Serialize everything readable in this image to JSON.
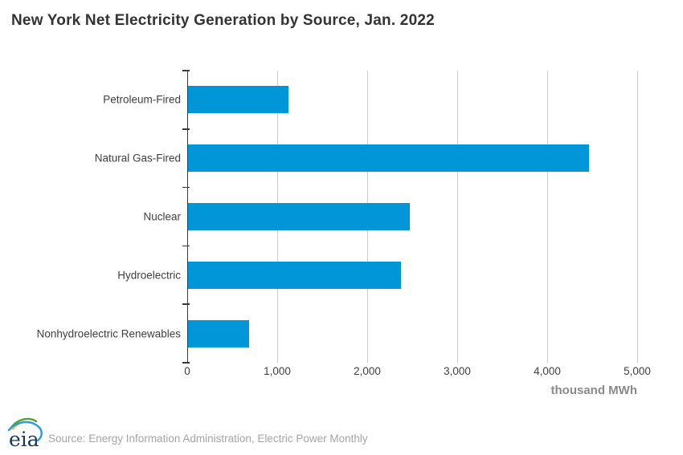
{
  "title": "New York Net Electricity Generation by Source, Jan. 2022",
  "chart_data": {
    "type": "bar",
    "orientation": "horizontal",
    "categories": [
      "Petroleum-Fired",
      "Natural Gas-Fired",
      "Nuclear",
      "Hydroelectric",
      "Nonhydroelectric Renewables"
    ],
    "values": [
      1115,
      4455,
      2460,
      2365,
      680
    ],
    "xlim": [
      0,
      5000
    ],
    "x_ticks": [
      "0",
      "1,000",
      "2,000",
      "3,000",
      "4,000",
      "5,000"
    ],
    "x_tick_values": [
      0,
      1000,
      2000,
      3000,
      4000,
      5000
    ],
    "unit_label": "thousand MWh",
    "title": "New York Net Electricity Generation by Source, Jan. 2022",
    "xlabel": "thousand MWh",
    "ylabel": "",
    "grid": "vertical gridlines on",
    "legend": "none",
    "bar_color": "#0096d7",
    "axis_color": "#3a3a3a",
    "gridline_color": "#cdcdcd"
  },
  "footer": {
    "logo_text": "eia",
    "source": "Source: Energy Information Administration, Electric Power Monthly"
  }
}
